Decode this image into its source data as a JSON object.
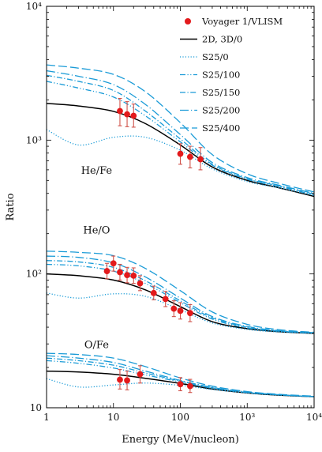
{
  "chart_data": {
    "type": "line",
    "xlabel": "Energy (MeV/nucleon)",
    "ylabel": "Ratio",
    "x_scale": "log",
    "y_scale": "log",
    "xlim": [
      1,
      10000
    ],
    "ylim": [
      10,
      10000
    ],
    "x_ticks": [
      {
        "value": 1,
        "label": "1"
      },
      {
        "value": 10,
        "label": "10"
      },
      {
        "value": 100,
        "label": "100"
      },
      {
        "value": 1000,
        "label": "10³"
      },
      {
        "value": 10000,
        "label": "10⁴"
      }
    ],
    "y_ticks": [
      {
        "value": 10,
        "label": "10"
      },
      {
        "value": 100,
        "label": "10²"
      },
      {
        "value": 1000,
        "label": "10³"
      },
      {
        "value": 10000,
        "label": "10⁴"
      }
    ],
    "legend_position": "top-right",
    "legend": [
      {
        "label": "Voyager 1/VLISM",
        "style": "marker",
        "color": "#e31a1c"
      },
      {
        "label": "2D, 3D/0",
        "style": "solid",
        "color": "#000000"
      },
      {
        "label": "S25/0",
        "style": "dotted",
        "color": "#1a9bd7"
      },
      {
        "label": "S25/100",
        "style": "dashdotdot",
        "color": "#1a9bd7"
      },
      {
        "label": "S25/150",
        "style": "dashdot",
        "color": "#1a9bd7"
      },
      {
        "label": "S25/200",
        "style": "longdashdot",
        "color": "#1a9bd7"
      },
      {
        "label": "S25/400",
        "style": "longdash",
        "color": "#1a9bd7"
      }
    ],
    "panels": [
      {
        "label": "He/Fe",
        "data": {
          "name": "Voyager 1/VLISM",
          "x": [
            12.5,
            16,
            20,
            100,
            140,
            200
          ],
          "y": [
            1650,
            1560,
            1520,
            790,
            750,
            720
          ],
          "err_low": [
            1280,
            1260,
            1250,
            660,
            620,
            600
          ],
          "err_high": [
            2050,
            1940,
            1860,
            940,
            900,
            880
          ]
        },
        "models": [
          {
            "style": "solid",
            "x": [
              1,
              3,
              10,
              30,
              100,
              300,
              1000,
              3000,
              10000
            ],
            "y": [
              1880,
              1800,
              1640,
              1330,
              920,
              630,
              500,
              440,
              380
            ]
          },
          {
            "style": "dotted",
            "x": [
              1,
              3,
              10,
              30,
              100,
              300,
              1000,
              3000,
              10000
            ],
            "y": [
              1200,
              920,
              1050,
              1050,
              840,
              610,
              490,
              440,
              385
            ]
          },
          {
            "style": "dashdotdot",
            "x": [
              1,
              3,
              10,
              30,
              100,
              300,
              1000,
              3000,
              10000
            ],
            "y": [
              2750,
              2450,
              2100,
              1520,
              970,
              650,
              510,
              450,
              390
            ]
          },
          {
            "style": "dashdot",
            "x": [
              1,
              3,
              10,
              30,
              100,
              300,
              1000,
              3000,
              10000
            ],
            "y": [
              3050,
              2750,
              2350,
              1650,
              1020,
              660,
              515,
              455,
              395
            ]
          },
          {
            "style": "longdashdot",
            "x": [
              1,
              3,
              10,
              30,
              100,
              300,
              1000,
              3000,
              10000
            ],
            "y": [
              3300,
              3000,
              2600,
              1850,
              1100,
              680,
              525,
              460,
              400
            ]
          },
          {
            "style": "longdash",
            "x": [
              1,
              3,
              10,
              30,
              100,
              300,
              1000,
              3000,
              10000
            ],
            "y": [
              3650,
              3450,
              3100,
              2300,
              1350,
              780,
              560,
              475,
              410
            ]
          }
        ]
      },
      {
        "label": "He/O",
        "data": {
          "name": "Voyager 1/VLISM",
          "x": [
            8,
            10,
            12.5,
            16,
            20,
            25,
            40,
            60,
            80,
            100,
            140
          ],
          "y": [
            105,
            120,
            103,
            98,
            97,
            85,
            72,
            65,
            55,
            53,
            51
          ],
          "err_low": [
            92,
            105,
            90,
            86,
            85,
            75,
            64,
            57,
            48,
            46,
            44
          ],
          "err_high": [
            120,
            136,
            118,
            112,
            111,
            97,
            81,
            74,
            63,
            61,
            59
          ]
        },
        "models": [
          {
            "style": "solid",
            "x": [
              1,
              3,
              10,
              30,
              100,
              300,
              1000,
              3000,
              10000
            ],
            "y": [
              100,
              97,
              90,
              76,
              57,
              44,
              39,
              37,
              36
            ]
          },
          {
            "style": "dotted",
            "x": [
              1,
              3,
              10,
              30,
              100,
              300,
              1000,
              3000,
              10000
            ],
            "y": [
              72,
              66,
              71,
              68,
              54,
              43,
              38.5,
              36.8,
              35.8
            ]
          },
          {
            "style": "dashdotdot",
            "x": [
              1,
              3,
              10,
              30,
              100,
              300,
              1000,
              3000,
              10000
            ],
            "y": [
              118,
              115,
              105,
              85,
              61,
              46,
              39.5,
              37.3,
              36.2
            ]
          },
          {
            "style": "dashdot",
            "x": [
              1,
              3,
              10,
              30,
              100,
              300,
              1000,
              3000,
              10000
            ],
            "y": [
              126,
              123,
              112,
              89,
              63,
              47,
              40,
              37.5,
              36.3
            ]
          },
          {
            "style": "longdashdot",
            "x": [
              1,
              3,
              10,
              30,
              100,
              300,
              1000,
              3000,
              10000
            ],
            "y": [
              136,
              133,
              121,
              95,
              66,
              48,
              40.5,
              37.7,
              36.4
            ]
          },
          {
            "style": "longdash",
            "x": [
              1,
              3,
              10,
              30,
              100,
              300,
              1000,
              3000,
              10000
            ],
            "y": [
              148,
              145,
              137,
              110,
              75,
              52,
              42,
              38.3,
              36.6
            ]
          }
        ]
      },
      {
        "label": "O/Fe",
        "data": {
          "name": "Voyager 1/VLISM",
          "x": [
            12.5,
            16,
            25,
            100,
            140
          ],
          "y": [
            16.2,
            16.0,
            17.8,
            15.0,
            14.5
          ],
          "err_low": [
            13.8,
            13.6,
            15.3,
            13.4,
            13.0
          ],
          "err_high": [
            19.3,
            18.8,
            20.6,
            16.8,
            16.3
          ]
        },
        "models": [
          {
            "style": "solid",
            "x": [
              1,
              3,
              10,
              30,
              100,
              300,
              1000,
              3000,
              10000
            ],
            "y": [
              18.8,
              18.5,
              17.8,
              16.6,
              15.2,
              13.8,
              12.9,
              12.4,
              12.1
            ]
          },
          {
            "style": "dotted",
            "x": [
              1,
              3,
              10,
              30,
              100,
              300,
              1000,
              3000,
              10000
            ],
            "y": [
              16.5,
              14.3,
              14.8,
              15.3,
              14.7,
              13.7,
              12.9,
              12.4,
              12.1
            ]
          },
          {
            "style": "dashdotdot",
            "x": [
              1,
              3,
              10,
              30,
              100,
              300,
              1000,
              3000,
              10000
            ],
            "y": [
              22.5,
              21.5,
              19.8,
              17.6,
              15.6,
              14.0,
              13.0,
              12.5,
              12.1
            ]
          },
          {
            "style": "dashdot",
            "x": [
              1,
              3,
              10,
              30,
              100,
              300,
              1000,
              3000,
              10000
            ],
            "y": [
              23.5,
              22.5,
              20.8,
              18.2,
              15.8,
              14.1,
              13.0,
              12.5,
              12.1
            ]
          },
          {
            "style": "longdashdot",
            "x": [
              1,
              3,
              10,
              30,
              100,
              300,
              1000,
              3000,
              10000
            ],
            "y": [
              24.5,
              23.5,
              21.8,
              18.8,
              16.0,
              14.2,
              13.1,
              12.5,
              12.1
            ]
          },
          {
            "style": "longdash",
            "x": [
              1,
              3,
              10,
              30,
              100,
              300,
              1000,
              3000,
              10000
            ],
            "y": [
              25.5,
              25.0,
              23.5,
              20.3,
              16.7,
              14.5,
              13.2,
              12.6,
              12.2
            ]
          }
        ]
      }
    ]
  }
}
